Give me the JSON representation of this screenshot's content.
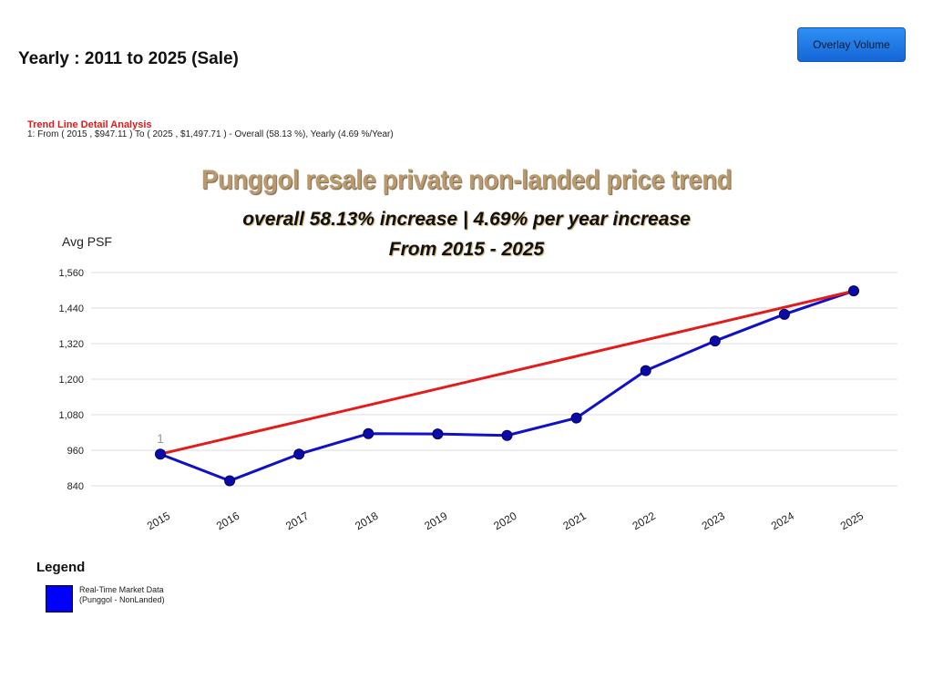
{
  "header": {
    "heading": "Yearly : 2011 to 2025 (Sale)",
    "overlay_button_label": "Overlay Volume"
  },
  "trend_analysis": {
    "title": "Trend Line Detail Analysis",
    "detail": "1: From ( 2015 , $947.11 ) To ( 2025 , $1,497.71 ) - Overall (58.13 %), Yearly (4.69 %/Year)"
  },
  "headline": {
    "title": "Punggol resale private non-landed price trend",
    "line1": "overall 58.13% increase | 4.69% per year increase",
    "line2": "From 2015 - 2025"
  },
  "legend": {
    "title": "Legend",
    "line1": "Real-Time Market Data",
    "line2": "(Punggol - NonLanded)"
  },
  "colors": {
    "series": "#1010c8",
    "trend": "#e31b1b",
    "grid": "#dddddd"
  },
  "chart_data": {
    "type": "line",
    "ylabel": "Avg PSF",
    "x": [
      "2015",
      "2016",
      "2017",
      "2018",
      "2019",
      "2020",
      "2021",
      "2022",
      "2023",
      "2024",
      "2025"
    ],
    "yticks": [
      840,
      960,
      1080,
      1200,
      1320,
      1440,
      1560
    ],
    "ytick_labels": [
      "840",
      "960",
      "1,080",
      "1,200",
      "1,320",
      "1,440",
      "1,560"
    ],
    "ylim": [
      840,
      1560
    ],
    "grid": true,
    "series": [
      {
        "values": [
          947,
          857,
          947,
          1016,
          1015,
          1010,
          1069,
          1229,
          1329,
          1419,
          1498
        ]
      }
    ],
    "trend_line": {
      "label": "1",
      "from": {
        "x": "2015",
        "y": 947.11
      },
      "to": {
        "x": "2025",
        "y": 1497.71
      }
    },
    "legend_position": "bottom-left"
  }
}
